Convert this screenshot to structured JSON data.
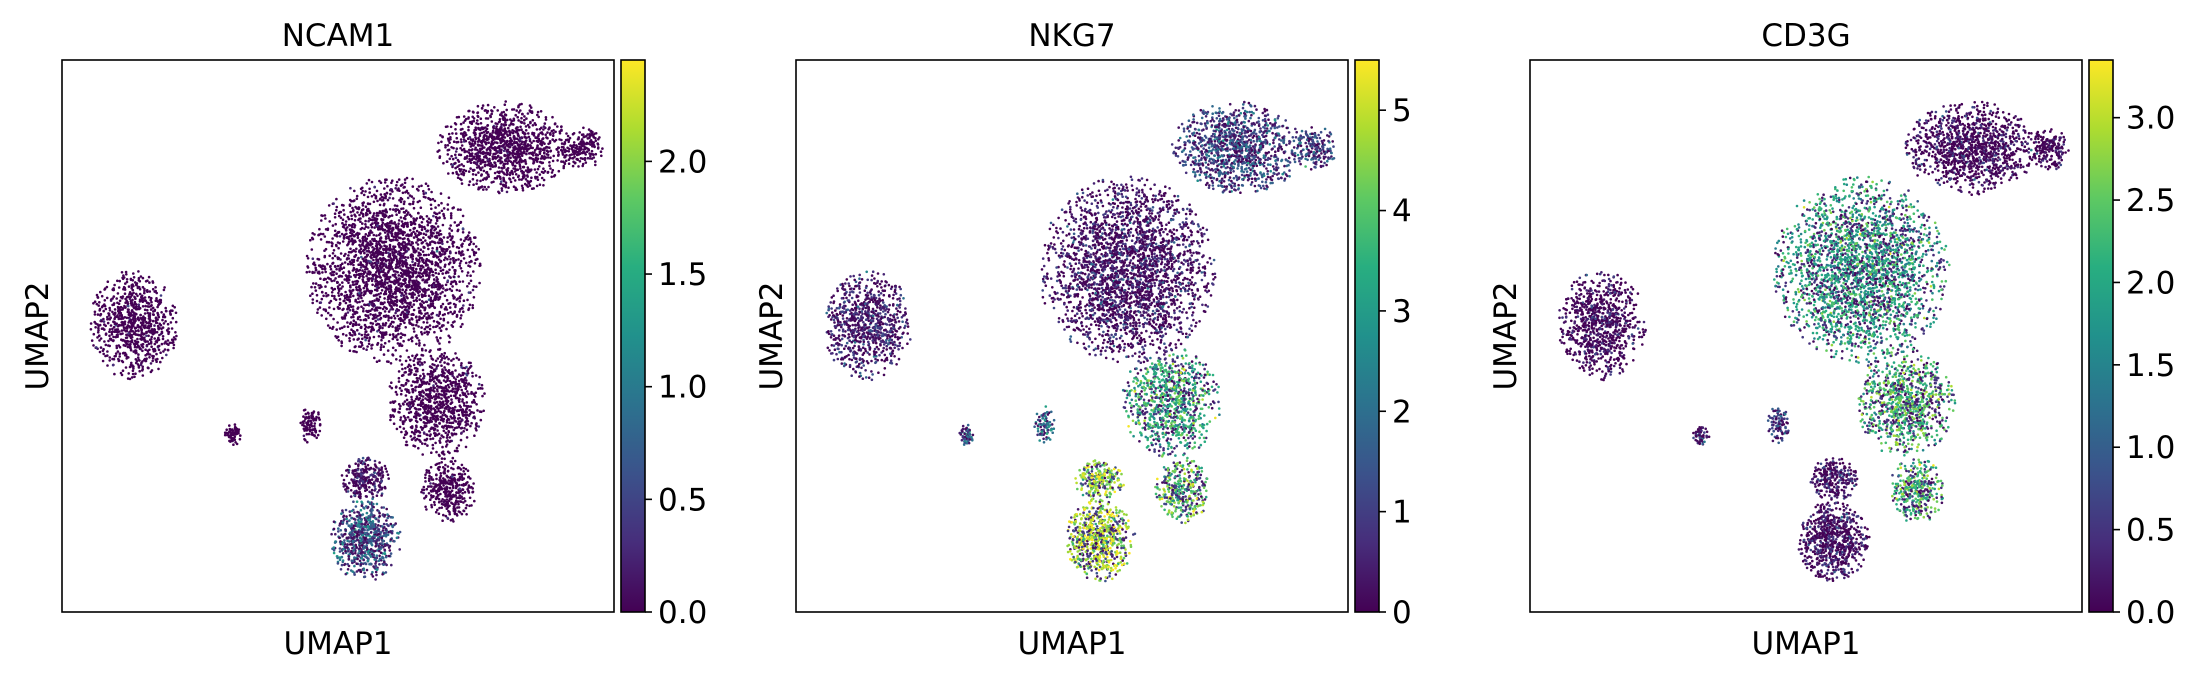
{
  "chart_data": [
    {
      "type": "scatter",
      "title": "NCAM1",
      "xlabel": "UMAP1",
      "ylabel": "UMAP2",
      "colormap": "viridis",
      "colorbar": {
        "min": 0,
        "max": 2.45,
        "ticks": [
          "0.0",
          "0.5",
          "1.0",
          "1.5",
          "2.0"
        ],
        "tick_values": [
          0,
          0.5,
          1.0,
          1.5,
          2.0
        ]
      },
      "grid": false,
      "cluster_levels": {
        "top_right": 0.0,
        "big_upper": 0.05,
        "mid_right": 0.05,
        "left_blob": 0.02,
        "small_a": 0.02,
        "small_b": 0.05,
        "bottom_left_lower": 0.75,
        "bottom_left_mid": 0.15,
        "mid_right_lower": 0.05
      }
    },
    {
      "type": "scatter",
      "title": "NKG7",
      "xlabel": "UMAP1",
      "ylabel": "UMAP2",
      "colormap": "viridis",
      "colorbar": {
        "min": 0,
        "max": 5.5,
        "ticks": [
          "0",
          "1",
          "2",
          "3",
          "4",
          "5"
        ],
        "tick_values": [
          0,
          1,
          2,
          3,
          4,
          5
        ]
      },
      "grid": false,
      "cluster_levels": {
        "top_right": 1.4,
        "big_upper": 0.4,
        "mid_right": 3.6,
        "left_blob": 0.6,
        "small_a": 1.8,
        "small_b": 2.2,
        "bottom_left_lower": 4.8,
        "bottom_left_mid": 4.6,
        "mid_right_lower": 4.1
      }
    },
    {
      "type": "scatter",
      "title": "CD3G",
      "xlabel": "UMAP1",
      "ylabel": "UMAP2",
      "colormap": "viridis",
      "colorbar": {
        "min": 0,
        "max": 3.35,
        "ticks": [
          "0.0",
          "0.5",
          "1.0",
          "1.5",
          "2.0",
          "2.5",
          "3.0"
        ],
        "tick_values": [
          0,
          0.5,
          1.0,
          1.5,
          2.0,
          2.5,
          3.0
        ]
      },
      "grid": false,
      "cluster_levels": {
        "top_right": 0.1,
        "big_upper": 2.0,
        "mid_right": 2.3,
        "left_blob": 0.1,
        "small_a": 0.4,
        "small_b": 0.6,
        "bottom_left_lower": 0.2,
        "bottom_left_mid": 0.3,
        "mid_right_lower": 2.4
      }
    }
  ]
}
